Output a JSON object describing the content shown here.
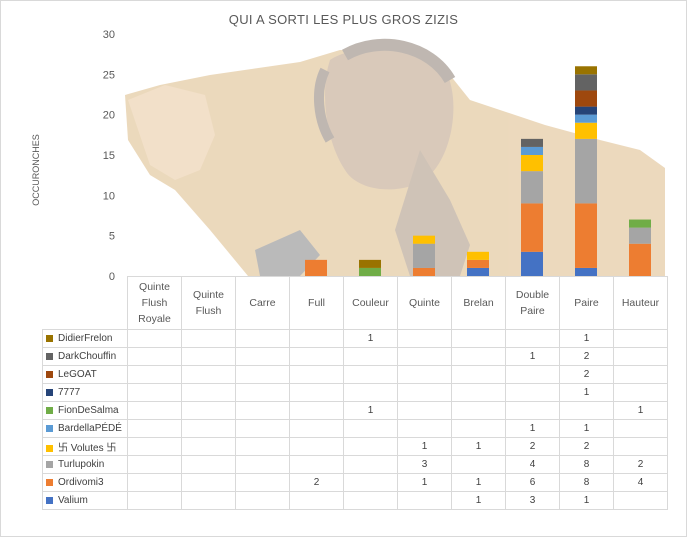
{
  "chart_data": {
    "type": "bar",
    "stacked": true,
    "title": "QUI A SORTI LES PLUS GROS ZIZIS",
    "ylabel": "OCCURONCHES",
    "ylim": [
      0,
      30
    ],
    "yticks": [
      "0",
      "5",
      "10",
      "15",
      "20",
      "25",
      "30"
    ],
    "grid": false,
    "legend": "data-table",
    "categories": [
      "Quinte\nFlush\nRoyale",
      "Quinte\nFlush",
      "Carre",
      "Full",
      "Couleur",
      "Quinte",
      "Brelan",
      "Double\nPaire",
      "Paire",
      "Hauteur"
    ],
    "series": [
      {
        "name": "Valium",
        "color": "#4472c4",
        "values": [
          null,
          null,
          null,
          null,
          null,
          null,
          1,
          3,
          1,
          null
        ]
      },
      {
        "name": "Ordivomi3",
        "color": "#ed7d31",
        "values": [
          null,
          null,
          null,
          2,
          null,
          1,
          1,
          6,
          8,
          4
        ]
      },
      {
        "name": "Turlupokin",
        "color": "#a5a5a5",
        "values": [
          null,
          null,
          null,
          null,
          null,
          3,
          null,
          4,
          8,
          2
        ]
      },
      {
        "name": "卐 Volutes 卐",
        "color": "#ffc000",
        "values": [
          null,
          null,
          null,
          null,
          null,
          1,
          1,
          2,
          2,
          null
        ]
      },
      {
        "name": "BardellaPÉDÉ",
        "color": "#5b9bd5",
        "values": [
          null,
          null,
          null,
          null,
          null,
          null,
          null,
          1,
          1,
          null
        ]
      },
      {
        "name": "FionDeSalma",
        "color": "#70ad47",
        "values": [
          null,
          null,
          null,
          null,
          1,
          null,
          null,
          null,
          null,
          1
        ]
      },
      {
        "name": "7777",
        "color": "#264478",
        "values": [
          null,
          null,
          null,
          null,
          null,
          null,
          null,
          null,
          1,
          null
        ]
      },
      {
        "name": "LeGOAT",
        "color": "#9e480e",
        "values": [
          null,
          null,
          null,
          null,
          null,
          null,
          null,
          null,
          2,
          null
        ]
      },
      {
        "name": "DarkChouffin",
        "color": "#636363",
        "values": [
          null,
          null,
          null,
          null,
          null,
          null,
          null,
          1,
          2,
          null
        ]
      },
      {
        "name": "DidierFrelon",
        "color": "#997300",
        "values": [
          null,
          null,
          null,
          null,
          1,
          null,
          null,
          null,
          1,
          null
        ]
      }
    ]
  }
}
